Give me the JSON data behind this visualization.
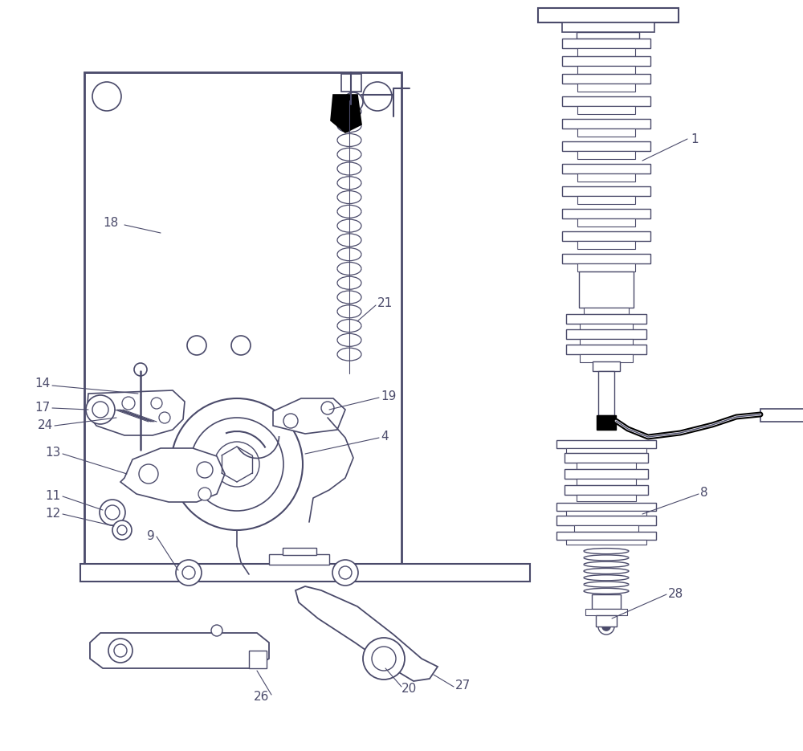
{
  "bg_color": "#ffffff",
  "line_color": "#4a4a6a",
  "lw": 1.2
}
